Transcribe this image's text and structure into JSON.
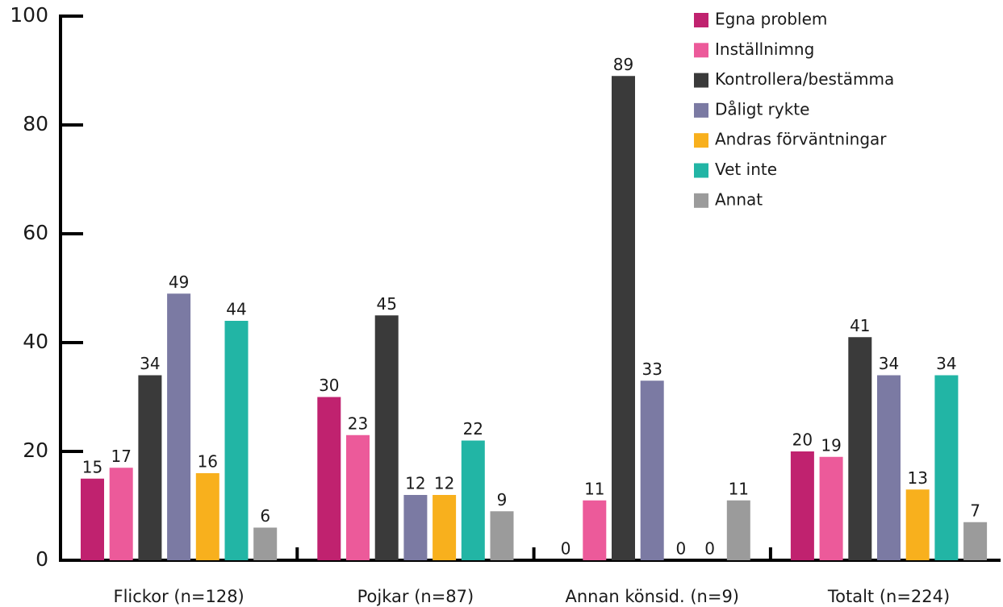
{
  "chart_data": {
    "type": "bar",
    "categories": [
      "Flickor (n=128)",
      "Pojkar (n=87)",
      "Annan könsid. (n=9)",
      "Totalt (n=224)"
    ],
    "series": [
      {
        "name": "Egna problem",
        "color": "#c0226f",
        "values": [
          15,
          30,
          0,
          20
        ]
      },
      {
        "name": "Inställnimng",
        "color": "#ec5a9a",
        "values": [
          17,
          23,
          11,
          19
        ]
      },
      {
        "name": "Kontrollera/bestämma",
        "color": "#3a3a3a",
        "values": [
          34,
          45,
          89,
          41
        ]
      },
      {
        "name": "Dåligt rykte",
        "color": "#7b7aa3",
        "values": [
          49,
          12,
          33,
          34
        ]
      },
      {
        "name": "Andras förväntningar",
        "color": "#f8b01d",
        "values": [
          16,
          12,
          0,
          13
        ]
      },
      {
        "name": "Vet inte",
        "color": "#22b5a5",
        "values": [
          44,
          22,
          0,
          34
        ]
      },
      {
        "name": "Annat",
        "color": "#9b9b9b",
        "values": [
          6,
          9,
          11,
          7
        ]
      }
    ],
    "ylim": [
      0,
      100
    ],
    "yticks": [
      0,
      20,
      40,
      60,
      80,
      100
    ],
    "legend": "upper right"
  }
}
